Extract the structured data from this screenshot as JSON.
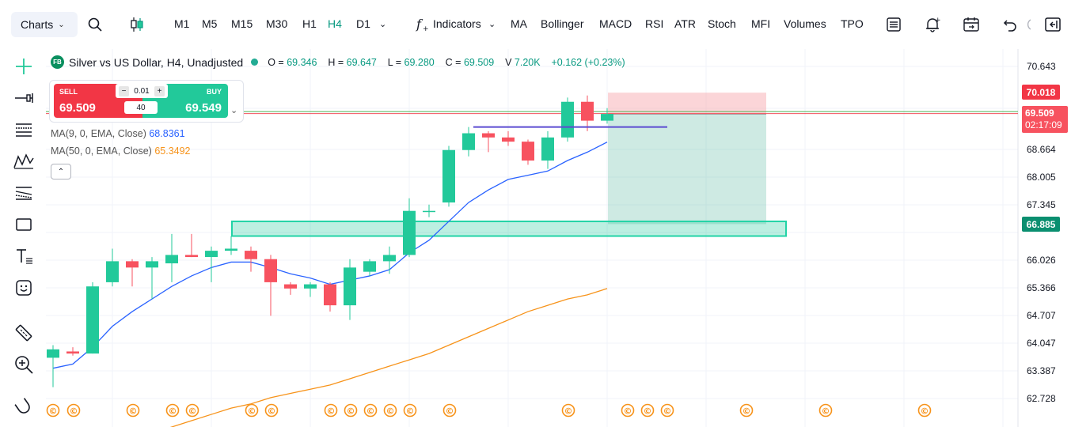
{
  "toolbar": {
    "charts_label": "Charts",
    "timeframes": [
      "M1",
      "M5",
      "M15",
      "M30",
      "H1",
      "H4",
      "D1"
    ],
    "active_timeframe": "H4",
    "indicators_label": "Indicators",
    "quick_indicators": [
      "MA",
      "Bollinger",
      "MACD",
      "RSI",
      "ATR",
      "Stoch",
      "MFI",
      "Volumes",
      "TPO"
    ]
  },
  "legend": {
    "badge": "FB",
    "title": "Silver vs US Dollar, H4, Unadjusted",
    "o_label": "O =",
    "o": "69.346",
    "h_label": "H =",
    "h": "69.647",
    "l_label": "L =",
    "l": "69.280",
    "c_label": "C =",
    "c": "69.509",
    "v_label": "V",
    "v": "7.20K",
    "change": "+0.162 (+0.23%)",
    "ma9_label": "MA(9, 0, EMA, Close)",
    "ma9_value": "68.8361",
    "ma50_label": "MA(50, 0, EMA, Close)",
    "ma50_value": "65.3492"
  },
  "trade_panel": {
    "sell_label": "SELL",
    "sell_price": "69.509",
    "buy_label": "BUY",
    "buy_price": "69.549",
    "qty": "0.01",
    "qty2": "40"
  },
  "price_scale": {
    "labels": [
      "70.643",
      "68.664",
      "68.005",
      "67.345",
      "66.026",
      "65.366",
      "64.707",
      "64.047",
      "63.387",
      "62.728"
    ],
    "tag_sl": "70.018",
    "tag_current": "69.509",
    "tag_countdown": "02:17:09",
    "tag_tp": "66.885"
  },
  "colors": {
    "up": "#22c99a",
    "down": "#f7525f",
    "ma9": "#2962ff",
    "ma50": "#f7931a",
    "accent": "#089981"
  },
  "chart_data": {
    "type": "candlestick",
    "ohlc": [
      {
        "o": 63.7,
        "h": 64.0,
        "l": 63.0,
        "c": 63.9
      },
      {
        "o": 63.85,
        "h": 63.95,
        "l": 63.75,
        "c": 63.8
      },
      {
        "o": 63.8,
        "h": 65.5,
        "l": 63.8,
        "c": 65.4
      },
      {
        "o": 65.5,
        "h": 66.3,
        "l": 65.4,
        "c": 66.0
      },
      {
        "o": 66.0,
        "h": 66.05,
        "l": 65.4,
        "c": 65.85
      },
      {
        "o": 65.85,
        "h": 66.1,
        "l": 65.1,
        "c": 66.0
      },
      {
        "o": 65.95,
        "h": 66.65,
        "l": 65.5,
        "c": 66.15
      },
      {
        "o": 66.15,
        "h": 66.65,
        "l": 66.1,
        "c": 66.1
      },
      {
        "o": 66.1,
        "h": 66.35,
        "l": 65.5,
        "c": 66.25
      },
      {
        "o": 66.25,
        "h": 66.6,
        "l": 66.15,
        "c": 66.3
      },
      {
        "o": 66.25,
        "h": 66.35,
        "l": 65.75,
        "c": 66.05
      },
      {
        "o": 66.05,
        "h": 66.15,
        "l": 64.7,
        "c": 65.5
      },
      {
        "o": 65.45,
        "h": 65.5,
        "l": 65.2,
        "c": 65.35
      },
      {
        "o": 65.35,
        "h": 65.5,
        "l": 65.15,
        "c": 65.45
      },
      {
        "o": 65.45,
        "h": 65.5,
        "l": 64.8,
        "c": 64.95
      },
      {
        "o": 64.95,
        "h": 66.05,
        "l": 64.6,
        "c": 65.85
      },
      {
        "o": 65.75,
        "h": 66.05,
        "l": 65.65,
        "c": 66.0
      },
      {
        "o": 66.0,
        "h": 66.35,
        "l": 65.7,
        "c": 66.15
      },
      {
        "o": 66.15,
        "h": 67.5,
        "l": 66.1,
        "c": 67.2
      },
      {
        "o": 67.2,
        "h": 67.35,
        "l": 67.05,
        "c": 67.2
      },
      {
        "o": 67.4,
        "h": 68.75,
        "l": 67.3,
        "c": 68.65
      },
      {
        "o": 68.65,
        "h": 69.2,
        "l": 68.5,
        "c": 69.05
      },
      {
        "o": 69.05,
        "h": 69.1,
        "l": 68.6,
        "c": 68.95
      },
      {
        "o": 68.95,
        "h": 69.1,
        "l": 68.75,
        "c": 68.85
      },
      {
        "o": 68.85,
        "h": 68.9,
        "l": 68.3,
        "c": 68.4
      },
      {
        "o": 68.4,
        "h": 69.1,
        "l": 68.2,
        "c": 68.95
      },
      {
        "o": 68.95,
        "h": 69.9,
        "l": 68.85,
        "c": 69.8
      },
      {
        "o": 69.8,
        "h": 69.95,
        "l": 69.1,
        "c": 69.35
      },
      {
        "o": 69.35,
        "h": 69.65,
        "l": 69.28,
        "c": 69.51
      }
    ],
    "ma9": [
      63.45,
      63.55,
      63.95,
      64.45,
      64.8,
      65.1,
      65.4,
      65.65,
      65.85,
      65.98,
      65.98,
      65.85,
      65.7,
      65.6,
      65.45,
      65.55,
      65.65,
      65.8,
      66.2,
      66.5,
      66.95,
      67.4,
      67.7,
      67.95,
      68.05,
      68.15,
      68.4,
      68.6,
      68.84
    ],
    "ma50": [
      61.9,
      62.05,
      62.2,
      62.35,
      62.5,
      62.6,
      62.75,
      62.85,
      62.95,
      63.05,
      63.2,
      63.35,
      63.5,
      63.65,
      63.8,
      64.0,
      64.2,
      64.4,
      64.6,
      64.8,
      64.95,
      65.1,
      65.2,
      65.35
    ],
    "resistance_line": 69.2,
    "support_zone": [
      66.6,
      66.95
    ],
    "position": {
      "entry": 69.509,
      "stop_loss": 70.018,
      "take_profit": 66.885
    },
    "ylim": [
      62.5,
      71.1
    ]
  }
}
